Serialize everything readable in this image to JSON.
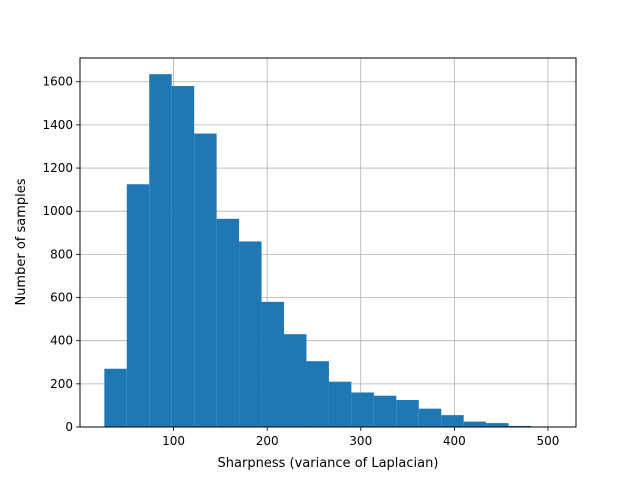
{
  "chart_data": {
    "type": "histogram",
    "title": "",
    "xlabel": "Sharpness (variance of Laplacian)",
    "ylabel": "Number of samples",
    "xlim": [
      0,
      530
    ],
    "ylim": [
      0,
      1710
    ],
    "grid": true,
    "bar_color": "#1f77b4",
    "bin_start": 26,
    "bin_width": 24,
    "values": [
      270,
      1125,
      1635,
      1580,
      1360,
      965,
      860,
      580,
      430,
      305,
      210,
      160,
      145,
      125,
      85,
      55,
      25,
      18,
      5,
      2
    ],
    "x_ticks": [
      100,
      200,
      300,
      400,
      500
    ],
    "x_tick_labels": [
      "100",
      "200",
      "300",
      "400",
      "500"
    ],
    "y_ticks": [
      0,
      200,
      400,
      600,
      800,
      1000,
      1200,
      1400,
      1600
    ],
    "y_tick_labels": [
      "0",
      "200",
      "400",
      "600",
      "800",
      "1000",
      "1200",
      "1400",
      "1600"
    ]
  }
}
